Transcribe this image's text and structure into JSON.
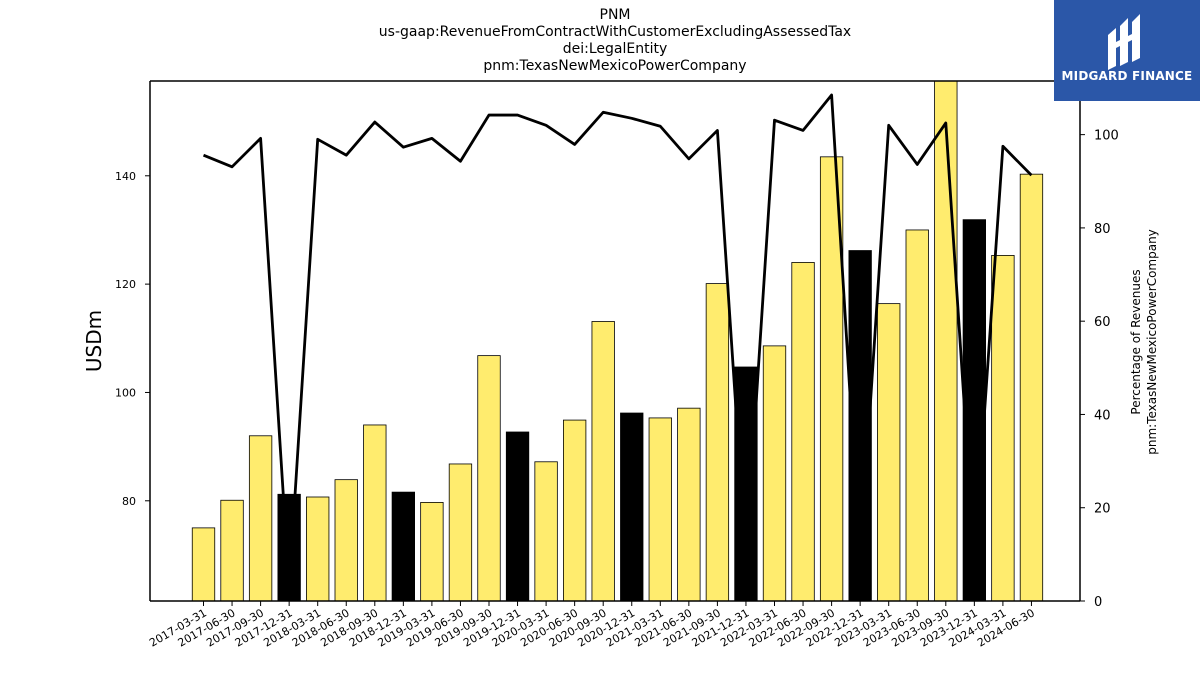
{
  "header": {
    "title_lines": [
      "PNM",
      "us-gaap:RevenueFromContractWithCustomerExcludingAssessedTax",
      "dei:LegalEntity",
      "pnm:TexasNewMexicoPowerCompany"
    ]
  },
  "logo": {
    "text": "MIDGARD FINANCE",
    "icon": "midgard-logo-icon",
    "background": "#2b57a8"
  },
  "chart_data": {
    "type": "bar",
    "categories": [
      "2017-03-31",
      "2017-06-30",
      "2017-09-30",
      "2017-12-31",
      "2018-03-31",
      "2018-06-30",
      "2018-09-30",
      "2018-12-31",
      "2019-03-31",
      "2019-06-30",
      "2019-09-30",
      "2019-12-31",
      "2020-03-31",
      "2020-06-30",
      "2020-09-30",
      "2020-12-31",
      "2021-03-31",
      "2021-06-30",
      "2021-09-30",
      "2021-12-31",
      "2022-03-31",
      "2022-06-30",
      "2022-09-30",
      "2022-12-31",
      "2023-03-31",
      "2023-06-30",
      "2023-09-30",
      "2023-12-31",
      "2024-03-31",
      "2024-06-30"
    ],
    "series": [
      {
        "type": "bar",
        "axis": "left",
        "values": [
          75.0,
          80.1,
          92.0,
          81.2,
          80.7,
          83.9,
          94.0,
          81.6,
          79.7,
          86.8,
          106.8,
          92.7,
          87.2,
          94.9,
          113.1,
          96.2,
          95.3,
          97.1,
          120.1,
          104.7,
          108.6,
          124.0,
          143.5,
          126.2,
          116.4,
          130.0,
          158.0,
          131.9,
          125.3,
          140.3
        ],
        "colors": [
          "#ffec6e",
          "#ffec6e",
          "#ffec6e",
          "#000000",
          "#ffec6e",
          "#ffec6e",
          "#ffec6e",
          "#000000",
          "#ffec6e",
          "#ffec6e",
          "#ffec6e",
          "#000000",
          "#ffec6e",
          "#ffec6e",
          "#ffec6e",
          "#000000",
          "#ffec6e",
          "#ffec6e",
          "#ffec6e",
          "#000000",
          "#ffec6e",
          "#ffec6e",
          "#ffec6e",
          "#000000",
          "#ffec6e",
          "#ffec6e",
          "#ffec6e",
          "#000000",
          "#ffec6e",
          "#ffec6e"
        ]
      },
      {
        "type": "line",
        "axis": "right",
        "values": [
          95.6,
          93.1,
          99.2,
          3.0,
          99.0,
          95.6,
          102.7,
          97.3,
          99.2,
          94.3,
          104.2,
          104.2,
          102.0,
          97.9,
          104.8,
          103.5,
          101.8,
          94.8,
          100.9,
          9.0,
          103.1,
          100.9,
          108.5,
          9.0,
          102.0,
          93.6,
          102.5,
          9.0,
          97.5,
          91.3
        ]
      }
    ],
    "ylabel": "USDm",
    "y2label": "Percentage of Revenues\npnm:TexasNewMexicoPowerCompany",
    "ylim": [
      61.5,
      157.5
    ],
    "y2lim": [
      0,
      111.5
    ],
    "yticks": [
      80,
      100,
      120,
      140
    ],
    "y2ticks": [
      0,
      20,
      40,
      60,
      80,
      100
    ],
    "bar_color": "#ffec6e",
    "highlight_color": "#000000",
    "line_color": "#000000",
    "grid": false,
    "legend": "none"
  }
}
